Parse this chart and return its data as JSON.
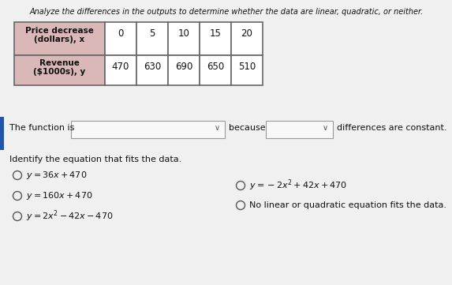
{
  "title": "Analyze the differences in the outputs to determine whether the data are linear, quadratic, or neither.",
  "row1_label_line1": "Price decrease",
  "row1_label_line2": "(dollars), x",
  "row2_label_line1": "Revenue",
  "row2_label_line2": "($1000s), y",
  "x_values": [
    "0",
    "5",
    "10",
    "15",
    "20"
  ],
  "y_values": [
    "470",
    "630",
    "690",
    "650",
    "510"
  ],
  "prompt1": "The function is",
  "prompt2": "because",
  "prompt3": "differences are constant.",
  "section2": "Identify the equation that fits the data.",
  "bg_color": "#f0f0f0",
  "table_header_bg": "#dbb8b8",
  "table_cell_bg": "#ffffff",
  "table_border": "#666666",
  "dropdown_bg": "#f8f8f8",
  "dropdown_border": "#999999",
  "left_bar_color": "#2255aa",
  "text_color": "#111111",
  "radio_color": "#555555",
  "title_italic": true
}
